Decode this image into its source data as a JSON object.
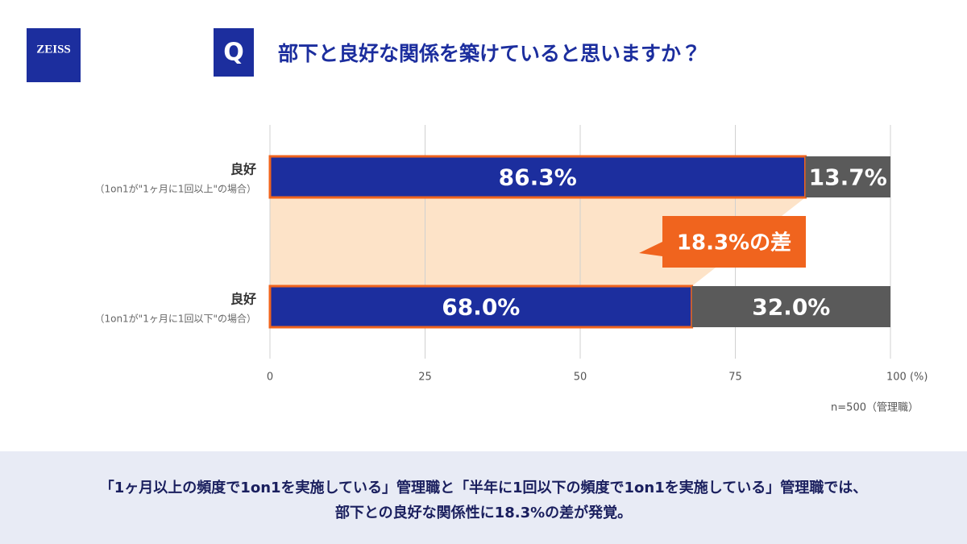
{
  "logo": "ZEISS",
  "question_badge": "Q",
  "chart_data": {
    "type": "bar",
    "orientation": "horizontal",
    "stacked": true,
    "title": "部下と良好な関係を築けていると思いますか？",
    "categories": [
      "良好",
      "良好"
    ],
    "category_notes": [
      "（1on1が\"1ヶ月に1回以上\"の場合）",
      "（1on1が\"1ヶ月に1回以下\"の場合）"
    ],
    "series": [
      {
        "color": "#1c2e9e",
        "border_color": "#f0641e",
        "values": [
          86.3,
          68.0
        ],
        "value_labels": [
          "86.3%",
          "68.0%"
        ]
      },
      {
        "color": "#5a5a5a",
        "values": [
          13.7,
          32.0
        ],
        "value_labels": [
          "13.7%",
          "32.0%"
        ]
      }
    ],
    "xlim": [
      0,
      100
    ],
    "xticks": [
      0,
      25,
      50,
      75,
      {
        "value": 100,
        "label": "100 (%)"
      }
    ],
    "grid": true,
    "annotation": "18.3%の差",
    "note": "n=500（管理職）"
  },
  "footer": [
    "「1ヶ月以上の頻度で1on1を実施している」管理職と「半年に1回以下の頻度で1on1を実施している」管理職では、",
    "部下との良好な関係性に18.3%の差が発覚。"
  ]
}
